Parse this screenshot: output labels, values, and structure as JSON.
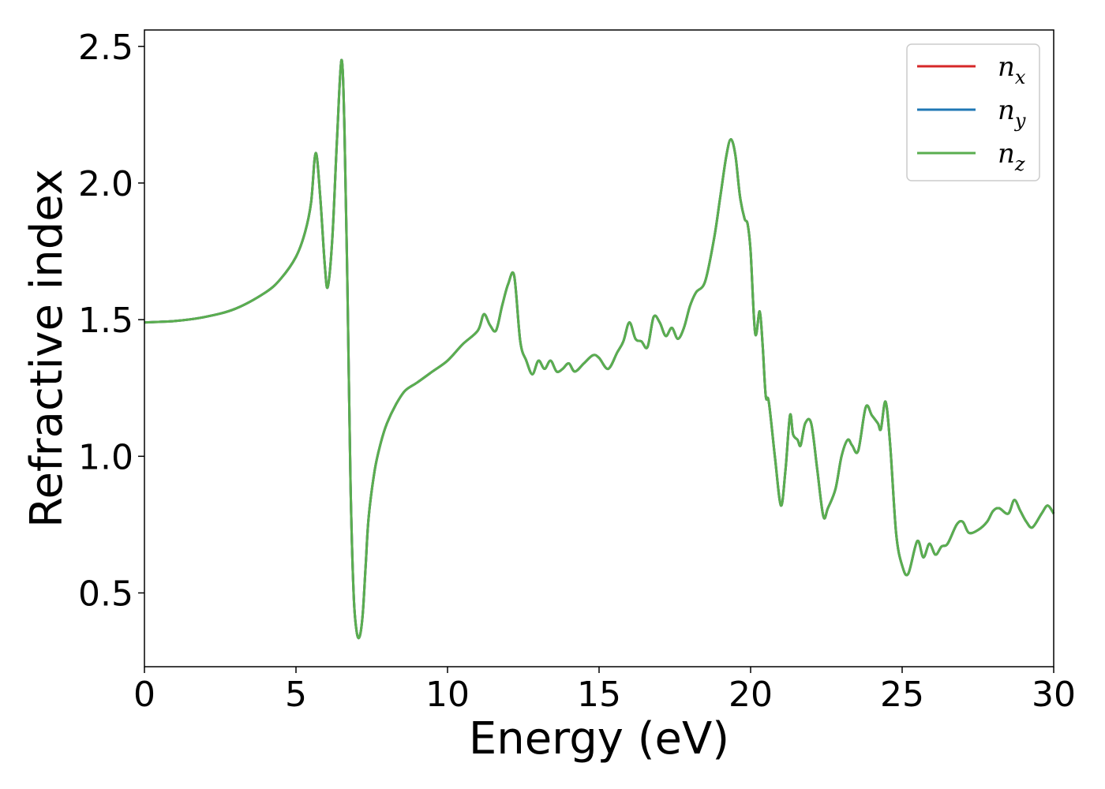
{
  "chart_data": {
    "type": "line",
    "xlabel": "Energy (eV)",
    "ylabel": "Refractive index",
    "xlim": [
      0,
      30
    ],
    "ylim": [
      0.23,
      2.56
    ],
    "xticks": [
      "0",
      "5",
      "10",
      "15",
      "20",
      "25",
      "30"
    ],
    "yticks": [
      "0.5",
      "1.0",
      "1.5",
      "2.0",
      "2.5"
    ],
    "grid": false,
    "legend_position": "top-right",
    "series": [
      {
        "name": "n",
        "subscript": "x",
        "color": "#d62728"
      },
      {
        "name": "n",
        "subscript": "y",
        "color": "#1f77b4"
      },
      {
        "name": "n",
        "subscript": "z",
        "color": "#5aae4f"
      }
    ],
    "x": [
      0,
      1,
      2,
      3,
      4,
      4.5,
      5,
      5.3,
      5.5,
      5.65,
      5.8,
      5.95,
      6.05,
      6.2,
      6.35,
      6.5,
      6.6,
      6.7,
      6.8,
      6.9,
      7.0,
      7.1,
      7.2,
      7.3,
      7.4,
      7.6,
      7.8,
      8.0,
      8.3,
      8.6,
      9.0,
      9.5,
      10.0,
      10.5,
      11.0,
      11.2,
      11.4,
      11.6,
      11.8,
      12.0,
      12.2,
      12.4,
      12.6,
      12.8,
      13.0,
      13.2,
      13.4,
      13.6,
      13.8,
      14.0,
      14.2,
      14.5,
      14.8,
      15.0,
      15.3,
      15.6,
      15.8,
      16.0,
      16.2,
      16.4,
      16.6,
      16.8,
      17.0,
      17.2,
      17.4,
      17.6,
      17.8,
      18.0,
      18.2,
      18.5,
      18.8,
      19.0,
      19.2,
      19.35,
      19.5,
      19.65,
      19.8,
      19.9,
      20.0,
      20.15,
      20.3,
      20.4,
      20.5,
      20.6,
      20.8,
      21.0,
      21.15,
      21.3,
      21.4,
      21.55,
      21.65,
      21.8,
      22.0,
      22.2,
      22.4,
      22.55,
      22.8,
      23.0,
      23.2,
      23.35,
      23.55,
      23.8,
      24.0,
      24.2,
      24.3,
      24.45,
      24.6,
      24.8,
      25.0,
      25.2,
      25.5,
      25.7,
      25.9,
      26.1,
      26.3,
      26.5,
      26.8,
      27.0,
      27.2,
      27.5,
      27.8,
      28.0,
      28.2,
      28.5,
      28.7,
      28.9,
      29.1,
      29.3,
      29.6,
      29.8,
      30.0
    ],
    "y": [
      1.49,
      1.495,
      1.51,
      1.54,
      1.6,
      1.65,
      1.73,
      1.82,
      1.93,
      2.11,
      1.95,
      1.7,
      1.62,
      1.8,
      2.15,
      2.45,
      2.2,
      1.6,
      0.9,
      0.5,
      0.36,
      0.34,
      0.42,
      0.6,
      0.78,
      0.95,
      1.05,
      1.12,
      1.19,
      1.24,
      1.27,
      1.31,
      1.35,
      1.41,
      1.46,
      1.52,
      1.48,
      1.46,
      1.55,
      1.63,
      1.66,
      1.42,
      1.35,
      1.3,
      1.35,
      1.32,
      1.35,
      1.31,
      1.32,
      1.34,
      1.31,
      1.34,
      1.37,
      1.36,
      1.32,
      1.38,
      1.42,
      1.49,
      1.43,
      1.42,
      1.4,
      1.51,
      1.49,
      1.44,
      1.47,
      1.43,
      1.47,
      1.55,
      1.6,
      1.64,
      1.8,
      1.95,
      2.1,
      2.16,
      2.1,
      1.95,
      1.87,
      1.85,
      1.75,
      1.45,
      1.53,
      1.4,
      1.22,
      1.2,
      1.0,
      0.82,
      0.95,
      1.15,
      1.08,
      1.06,
      1.04,
      1.12,
      1.12,
      0.95,
      0.78,
      0.81,
      0.88,
      1.0,
      1.06,
      1.04,
      1.02,
      1.18,
      1.15,
      1.12,
      1.1,
      1.2,
      1.05,
      0.72,
      0.6,
      0.57,
      0.69,
      0.63,
      0.68,
      0.64,
      0.67,
      0.68,
      0.75,
      0.76,
      0.72,
      0.73,
      0.76,
      0.8,
      0.81,
      0.79,
      0.84,
      0.8,
      0.76,
      0.74,
      0.79,
      0.82,
      0.79
    ]
  }
}
